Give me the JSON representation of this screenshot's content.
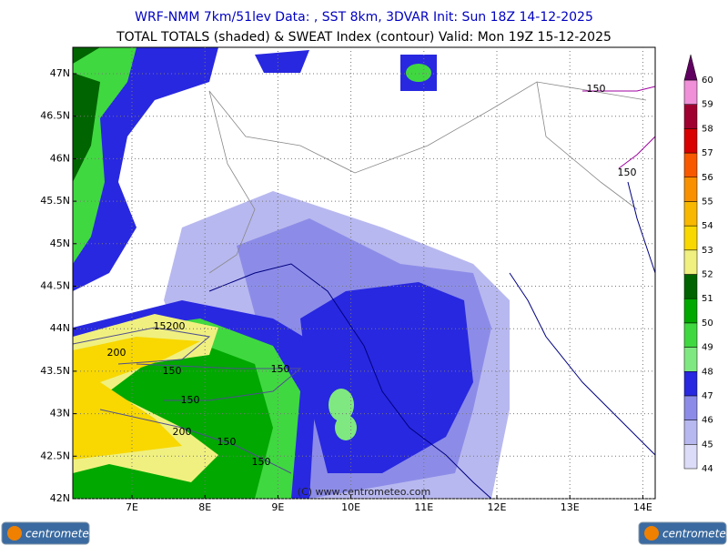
{
  "header": {
    "line1": "WRF-NMM 7km/51lev   Data: , SST 8km, 3DVAR   Init: Sun 18Z 14-12-2025",
    "line2": "TOTAL TOTALS (shaded) & SWEAT Index (contour)  Valid: Mon 19Z 15-12-2025"
  },
  "map": {
    "lon_ticks": [
      {
        "value": 7,
        "label": "7E"
      },
      {
        "value": 8,
        "label": "8E"
      },
      {
        "value": 9,
        "label": "9E"
      },
      {
        "value": 10,
        "label": "10E"
      },
      {
        "value": 11,
        "label": "11E"
      },
      {
        "value": 12,
        "label": "12E"
      },
      {
        "value": 13,
        "label": "13E"
      },
      {
        "value": 14,
        "label": "14E"
      }
    ],
    "lat_ticks": [
      {
        "value": 42,
        "label": "42N"
      },
      {
        "value": 42.5,
        "label": "42.5N"
      },
      {
        "value": 43,
        "label": "43N"
      },
      {
        "value": 43.5,
        "label": "43.5N"
      },
      {
        "value": 44,
        "label": "44N"
      },
      {
        "value": 44.5,
        "label": "44.5N"
      },
      {
        "value": 45,
        "label": "45N"
      },
      {
        "value": 45.5,
        "label": "45.5N"
      },
      {
        "value": 46,
        "label": "46N"
      },
      {
        "value": 46.5,
        "label": "46.5N"
      },
      {
        "value": 47,
        "label": "47N"
      }
    ],
    "contour_labels": [
      "150",
      "150",
      "15200",
      "200",
      "150",
      "150",
      "150",
      "200",
      "150",
      "150"
    ],
    "watermark": "(C) www.centrometeo.com"
  },
  "colorbar": {
    "levels": [
      44,
      45,
      46,
      47,
      48,
      49,
      50,
      51,
      52,
      53,
      54,
      55,
      56,
      57,
      58,
      59,
      60
    ],
    "colors": [
      "#dcdcf8",
      "#b8b8f0",
      "#8c8ce8",
      "#2828e0",
      "#80e880",
      "#40d840",
      "#00a800",
      "#006400",
      "#f0f080",
      "#f8d800",
      "#f8b800",
      "#f89000",
      "#f85800",
      "#d80000",
      "#a00030",
      "#f090d8",
      "#600060"
    ]
  },
  "logos": {
    "left": "centrometeo",
    "right": "centrometeo"
  }
}
